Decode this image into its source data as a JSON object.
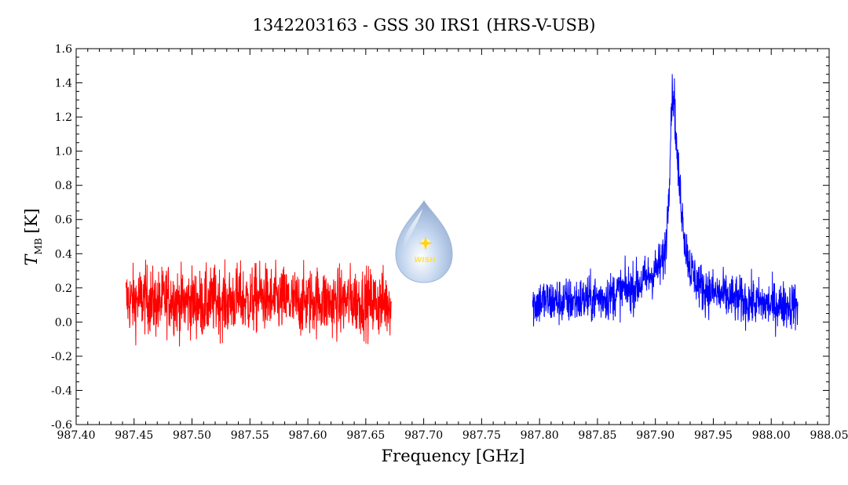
{
  "chart_data": {
    "type": "line",
    "title": "1342203163 - GSS 30 IRS1 (HRS-V-USB)",
    "xlabel": "Frequency [GHz]",
    "ylabel": "T",
    "ylabel_subscript": "MB",
    "ylabel_unit": "[K]",
    "xlim": [
      987.4,
      988.05
    ],
    "ylim": [
      -0.6,
      1.6
    ],
    "x_ticks": [
      "987.40",
      "987.45",
      "987.50",
      "987.55",
      "987.60",
      "987.65",
      "987.70",
      "987.75",
      "987.80",
      "987.85",
      "987.90",
      "987.95",
      "988.00",
      "988.05"
    ],
    "y_ticks": [
      "-0.6",
      "-0.4",
      "-0.2",
      "0.0",
      "0.2",
      "0.4",
      "0.6",
      "0.8",
      "1.0",
      "1.2",
      "1.4",
      "1.6"
    ],
    "grid": false,
    "series": [
      {
        "color": "#ff0000",
        "x": [
          987.443,
          987.45,
          987.46,
          987.47,
          987.48,
          987.49,
          987.5,
          987.51,
          987.52,
          987.53,
          987.54,
          987.55,
          987.56,
          987.57,
          987.58,
          987.59,
          987.6,
          987.61,
          987.62,
          987.63,
          987.64,
          987.65,
          987.66,
          987.672
        ],
        "y": [
          0.13,
          0.12,
          0.14,
          0.1,
          0.15,
          0.11,
          0.12,
          0.1,
          0.13,
          0.11,
          0.14,
          0.12,
          0.15,
          0.12,
          0.13,
          0.11,
          0.12,
          0.13,
          0.11,
          0.12,
          0.13,
          0.12,
          0.11,
          0.12
        ],
        "noise": 0.1
      },
      {
        "color": "#0000ff",
        "x": [
          987.794,
          987.8,
          987.82,
          987.84,
          987.86,
          987.87,
          987.88,
          987.89,
          987.895,
          987.9,
          987.905,
          987.908,
          987.91,
          987.912,
          987.914,
          987.916,
          987.918,
          987.92,
          987.923,
          987.926,
          987.93,
          987.935,
          987.94,
          987.95,
          987.96,
          987.97,
          987.98,
          987.99,
          988.0,
          988.01,
          988.023
        ],
        "y": [
          0.1,
          0.12,
          0.12,
          0.13,
          0.15,
          0.18,
          0.2,
          0.24,
          0.27,
          0.3,
          0.34,
          0.4,
          0.55,
          0.85,
          1.3,
          1.35,
          1.05,
          0.85,
          0.65,
          0.45,
          0.32,
          0.25,
          0.2,
          0.17,
          0.15,
          0.13,
          0.12,
          0.11,
          0.1,
          0.1,
          0.1
        ],
        "noise": 0.07
      }
    ]
  },
  "logo": {
    "text": "WISH",
    "color": "#b3c9e8"
  }
}
